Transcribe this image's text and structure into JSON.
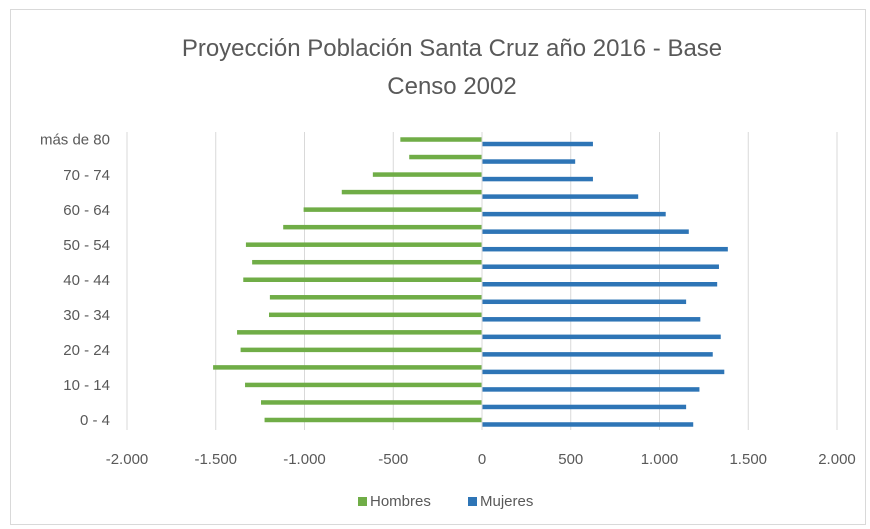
{
  "chart_data": {
    "type": "bar",
    "orientation": "horizontal",
    "title": "Proyección Población Santa Cruz año 2016 - Base Censo 2002",
    "categories": [
      "0 - 4",
      null,
      "10 - 14",
      null,
      "20 - 24",
      null,
      "30 - 34",
      null,
      "40 - 44",
      null,
      "50 - 54",
      null,
      "60 - 64",
      null,
      "70 - 74",
      null,
      "más de 80"
    ],
    "series": [
      {
        "name": "Hombres",
        "color": "#70ad47",
        "values": [
          -1225,
          -1245,
          -1335,
          -1515,
          -1360,
          -1380,
          -1200,
          -1195,
          -1345,
          -1295,
          -1330,
          -1120,
          -1005,
          -790,
          -615,
          -410,
          -460
        ]
      },
      {
        "name": "Mujeres",
        "color": "#2e75b6",
        "values": [
          1190,
          1150,
          1225,
          1365,
          1300,
          1345,
          1230,
          1150,
          1325,
          1335,
          1385,
          1165,
          1035,
          880,
          625,
          525,
          625
        ]
      }
    ],
    "xlim": [
      -2000,
      2000
    ],
    "xticks": [
      {
        "value": -2000,
        "label": "-2.000"
      },
      {
        "value": -1500,
        "label": "-1.500"
      },
      {
        "value": -1000,
        "label": "-1.000"
      },
      -500,
      0,
      500,
      {
        "value": 1000,
        "label": "1.000"
      },
      {
        "value": 1500,
        "label": "1.500"
      },
      {
        "value": 2000,
        "label": "2.000"
      }
    ],
    "grid": true,
    "legend": "bottom"
  }
}
